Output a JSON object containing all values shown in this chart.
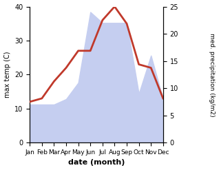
{
  "months": [
    "Jan",
    "Feb",
    "Mar",
    "Apr",
    "May",
    "Jun",
    "Jul",
    "Aug",
    "Sep",
    "Oct",
    "Nov",
    "Dec"
  ],
  "temp": [
    12,
    13,
    18,
    22,
    27,
    27,
    36,
    40,
    35,
    23,
    22,
    13
  ],
  "precip": [
    7,
    7,
    7,
    8,
    11,
    24,
    22,
    22,
    22,
    9,
    16,
    8
  ],
  "temp_color": "#c0392b",
  "precip_color_fill": "#c5cef0",
  "title": "",
  "xlabel": "date (month)",
  "ylabel_left": "max temp (C)",
  "ylabel_right": "med. precipitation (kg/m2)",
  "ylim_left": [
    0,
    40
  ],
  "ylim_right": [
    0,
    25
  ],
  "yticks_left": [
    0,
    10,
    20,
    30,
    40
  ],
  "yticks_right": [
    0,
    5,
    10,
    15,
    20,
    25
  ],
  "line_width": 2.0,
  "bg_color": "#ffffff"
}
